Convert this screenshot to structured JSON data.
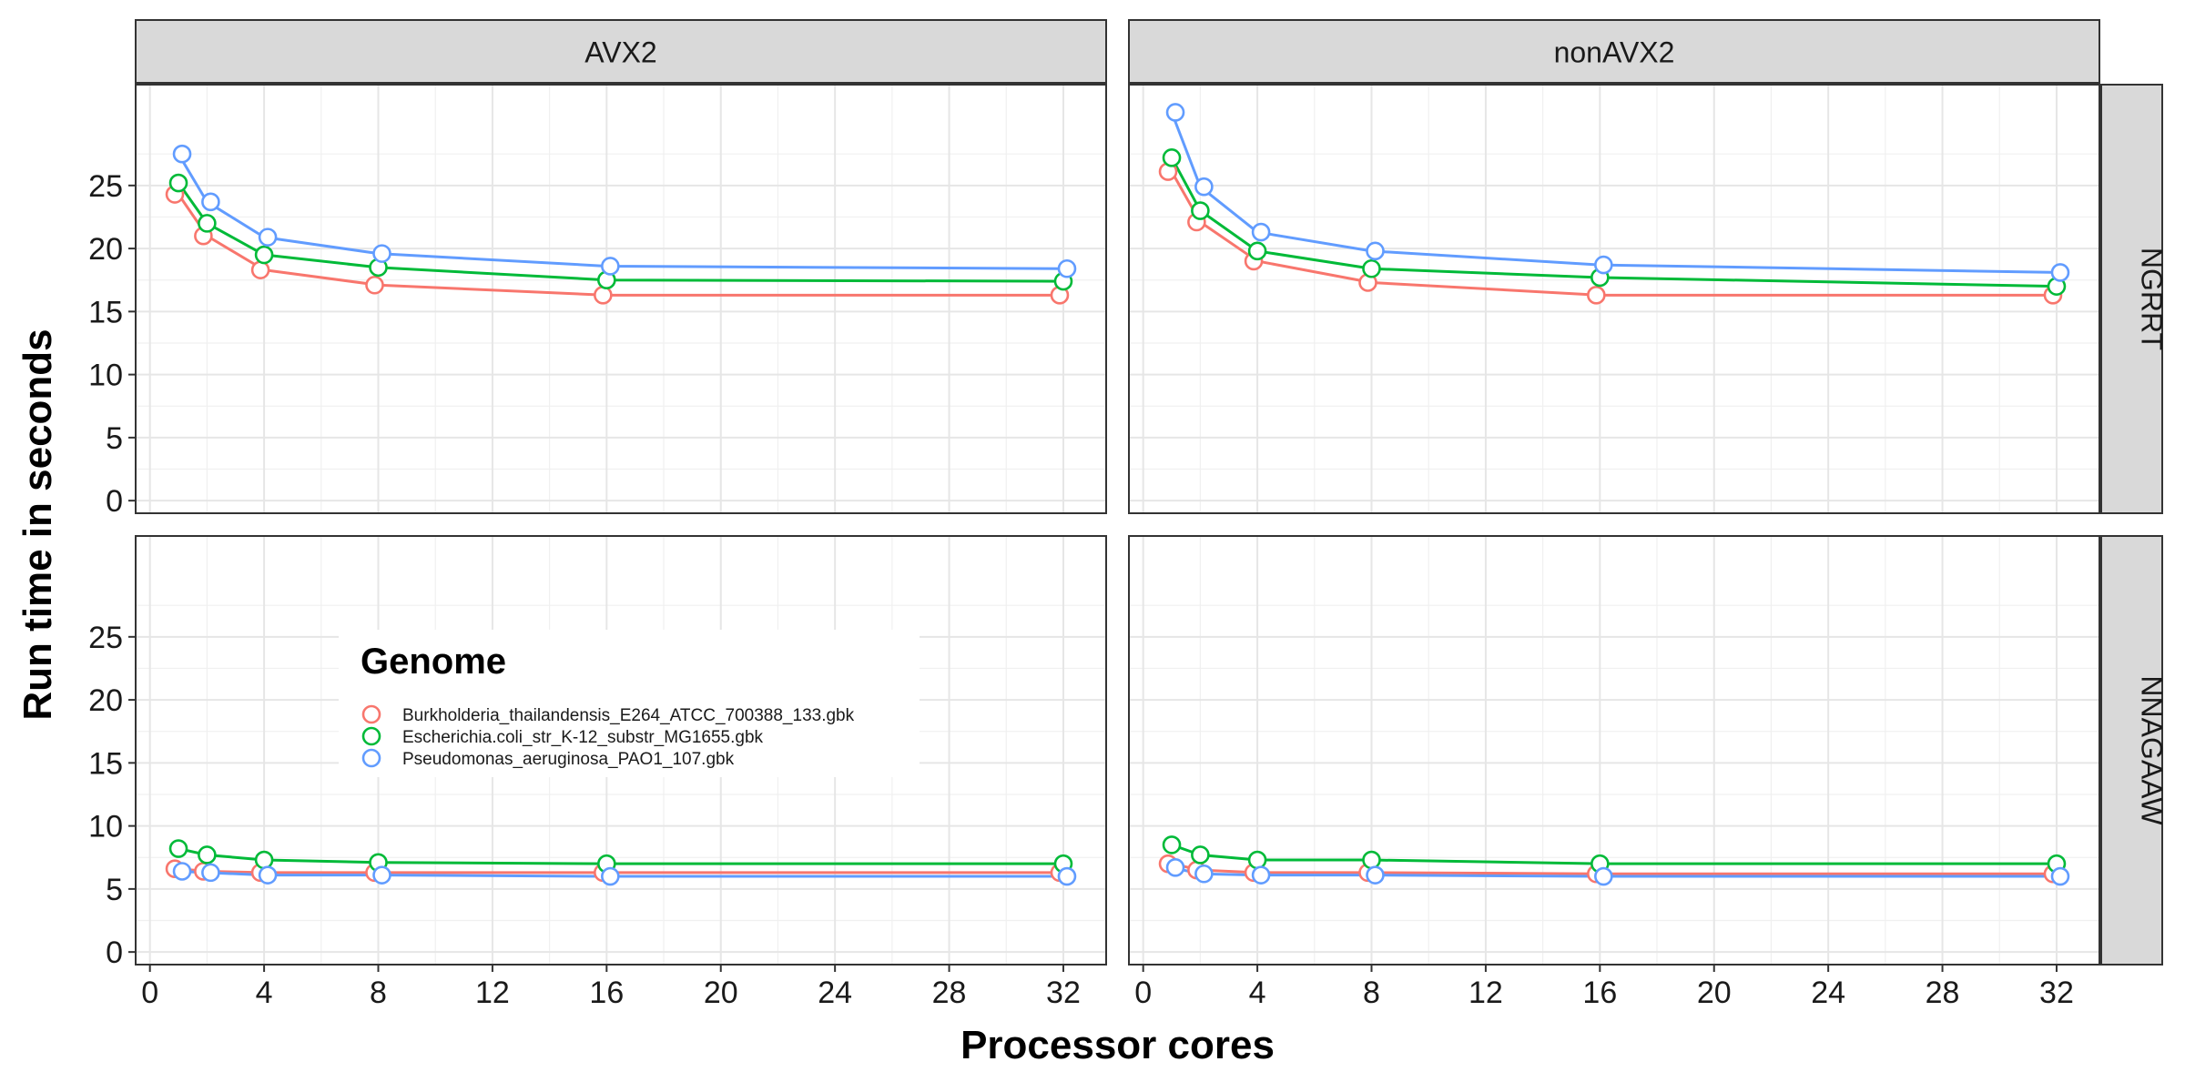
{
  "chart_data": {
    "type": "line",
    "xlabel": "Processor cores",
    "ylabel": "Run time in seconds",
    "column_facets": [
      "AVX2",
      "nonAVX2"
    ],
    "row_facets": [
      "NGRRT",
      "NNAGAAW"
    ],
    "x_ticks": [
      "0",
      "4",
      "8",
      "12",
      "16",
      "20",
      "24",
      "28",
      "32"
    ],
    "y_ticks": [
      "0",
      "5",
      "10",
      "15",
      "20",
      "25"
    ],
    "xlim": [
      -0.5,
      33.5
    ],
    "ylim": [
      -1,
      33
    ],
    "grid": true,
    "legend": {
      "title": "Genome",
      "placement": "inside-bottom-left-panel"
    },
    "series": [
      {
        "name": "Burkholderia_thailandensis_E264_ATCC_700388_133.gbk",
        "color": "#F8766D",
        "x": [
          1,
          2,
          4,
          8,
          16,
          32
        ]
      },
      {
        "name": "Escherichia.coli_str_K-12_substr_MG1655.gbk",
        "color": "#00BA38",
        "x": [
          1,
          2,
          4,
          8,
          16,
          32
        ]
      },
      {
        "name": "Pseudomonas_aeruginosa_PAO1_107.gbk",
        "color": "#619CFF",
        "x": [
          1,
          2,
          4,
          8,
          16,
          32
        ]
      }
    ],
    "panels": [
      {
        "column": "AVX2",
        "row": "NGRRT",
        "values": [
          [
            24.3,
            21.0,
            18.3,
            17.1,
            16.3,
            16.3
          ],
          [
            25.2,
            22.0,
            19.5,
            18.5,
            17.5,
            17.4
          ],
          [
            27.5,
            23.7,
            20.9,
            19.6,
            18.6,
            18.4
          ]
        ]
      },
      {
        "column": "nonAVX2",
        "row": "NGRRT",
        "values": [
          [
            26.1,
            22.1,
            19.0,
            17.3,
            16.3,
            16.3
          ],
          [
            27.2,
            23.0,
            19.8,
            18.4,
            17.7,
            17.0
          ],
          [
            30.8,
            24.9,
            21.3,
            19.8,
            18.7,
            18.1
          ]
        ]
      },
      {
        "column": "AVX2",
        "row": "NNAGAAW",
        "values": [
          [
            6.6,
            6.4,
            6.3,
            6.3,
            6.3,
            6.3
          ],
          [
            8.2,
            7.7,
            7.3,
            7.1,
            7.0,
            7.0
          ],
          [
            6.4,
            6.3,
            6.1,
            6.1,
            6.0,
            6.0
          ]
        ]
      },
      {
        "column": "nonAVX2",
        "row": "NNAGAAW",
        "values": [
          [
            7.0,
            6.5,
            6.3,
            6.3,
            6.2,
            6.2
          ],
          [
            8.5,
            7.7,
            7.3,
            7.3,
            7.0,
            7.0
          ],
          [
            6.7,
            6.2,
            6.1,
            6.1,
            6.0,
            6.0
          ]
        ]
      }
    ]
  }
}
